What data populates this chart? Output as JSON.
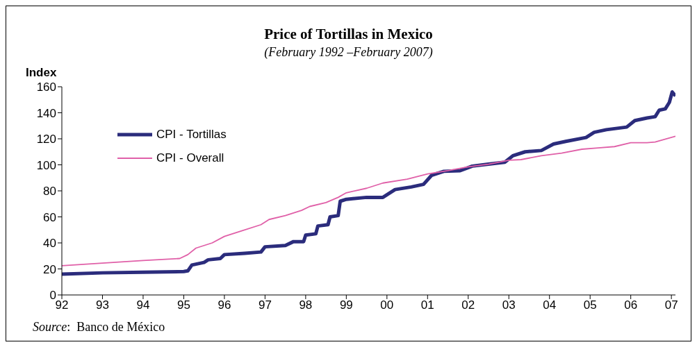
{
  "chart_data": {
    "type": "line",
    "title": "Price of Tortillas in Mexico",
    "subtitle": "(February 1992 –February 2007)",
    "ylabel": "Index",
    "xlim": [
      1992,
      2007.1
    ],
    "xticks": [
      {
        "value": 1992,
        "label": "92"
      },
      {
        "value": 1993,
        "label": "93"
      },
      {
        "value": 1994,
        "label": "94"
      },
      {
        "value": 1995,
        "label": "95"
      },
      {
        "value": 1996,
        "label": "96"
      },
      {
        "value": 1997,
        "label": "97"
      },
      {
        "value": 1998,
        "label": "98"
      },
      {
        "value": 1999,
        "label": "99"
      },
      {
        "value": 2000,
        "label": "00"
      },
      {
        "value": 2001,
        "label": "01"
      },
      {
        "value": 2002,
        "label": "02"
      },
      {
        "value": 2003,
        "label": "03"
      },
      {
        "value": 2004,
        "label": "04"
      },
      {
        "value": 2005,
        "label": "05"
      },
      {
        "value": 2006,
        "label": "06"
      },
      {
        "value": 2007,
        "label": "07"
      }
    ],
    "ylim": [
      0,
      160
    ],
    "yticks": [
      0,
      20,
      40,
      60,
      80,
      100,
      120,
      140,
      160
    ],
    "grid": false,
    "legend": "top left",
    "marker": "none",
    "line_style": "solid",
    "series": [
      {
        "name": "CPI - Tortillas",
        "color": "#2b2c7c",
        "x": [
          1992,
          1993,
          1994,
          1995,
          1995.1,
          1995.2,
          1995.5,
          1995.6,
          1995.9,
          1996,
          1996.5,
          1996.9,
          1997,
          1997.5,
          1997.7,
          1997.95,
          1998,
          1998.25,
          1998.3,
          1998.55,
          1998.6,
          1998.8,
          1998.85,
          1999,
          1999.5,
          1999.9,
          2000.2,
          2000.6,
          2000.9,
          2001.1,
          2001.4,
          2001.8,
          2002.1,
          2002.5,
          2002.9,
          2003.1,
          2003.4,
          2003.8,
          2004.1,
          2004.4,
          2004.9,
          2005.1,
          2005.4,
          2005.9,
          2006.1,
          2006.4,
          2006.6,
          2006.7,
          2006.85,
          2006.95,
          2007.02,
          2007.1
        ],
        "values": [
          16,
          17,
          17.5,
          18,
          18.5,
          23,
          25,
          27,
          28,
          31,
          32,
          33,
          37,
          38,
          41,
          41,
          46,
          47,
          53,
          54,
          60,
          61,
          72,
          73.5,
          75,
          75,
          81,
          83,
          85,
          92,
          95,
          95.5,
          99,
          100.5,
          102,
          107,
          110,
          111,
          116,
          118,
          121,
          125,
          127,
          129,
          134,
          136,
          137,
          142,
          143,
          148,
          156,
          153
        ]
      },
      {
        "name": "CPI - Overall",
        "color": "#e060a8",
        "x": [
          1992,
          1993,
          1994,
          1994.9,
          1995.1,
          1995.3,
          1995.7,
          1996,
          1996.4,
          1996.9,
          1997.1,
          1997.5,
          1997.9,
          1998.1,
          1998.5,
          1998.8,
          1999,
          1999.5,
          1999.9,
          2000.5,
          2001,
          2001.5,
          2002,
          2002.5,
          2003,
          2003.3,
          2003.8,
          2004.3,
          2004.8,
          2005.2,
          2005.6,
          2006,
          2006.4,
          2006.6,
          2007.1
        ],
        "values": [
          22.5,
          24.5,
          26.5,
          28,
          31,
          36,
          40,
          45,
          49,
          54,
          58,
          61,
          65,
          68,
          71,
          75,
          78.5,
          82,
          86,
          89,
          93,
          95.5,
          98.5,
          100.5,
          103.5,
          104,
          107,
          109,
          112,
          113,
          114,
          117,
          117,
          117.5,
          122
        ]
      }
    ],
    "annotations": [
      "Source:  Banco de México"
    ]
  }
}
